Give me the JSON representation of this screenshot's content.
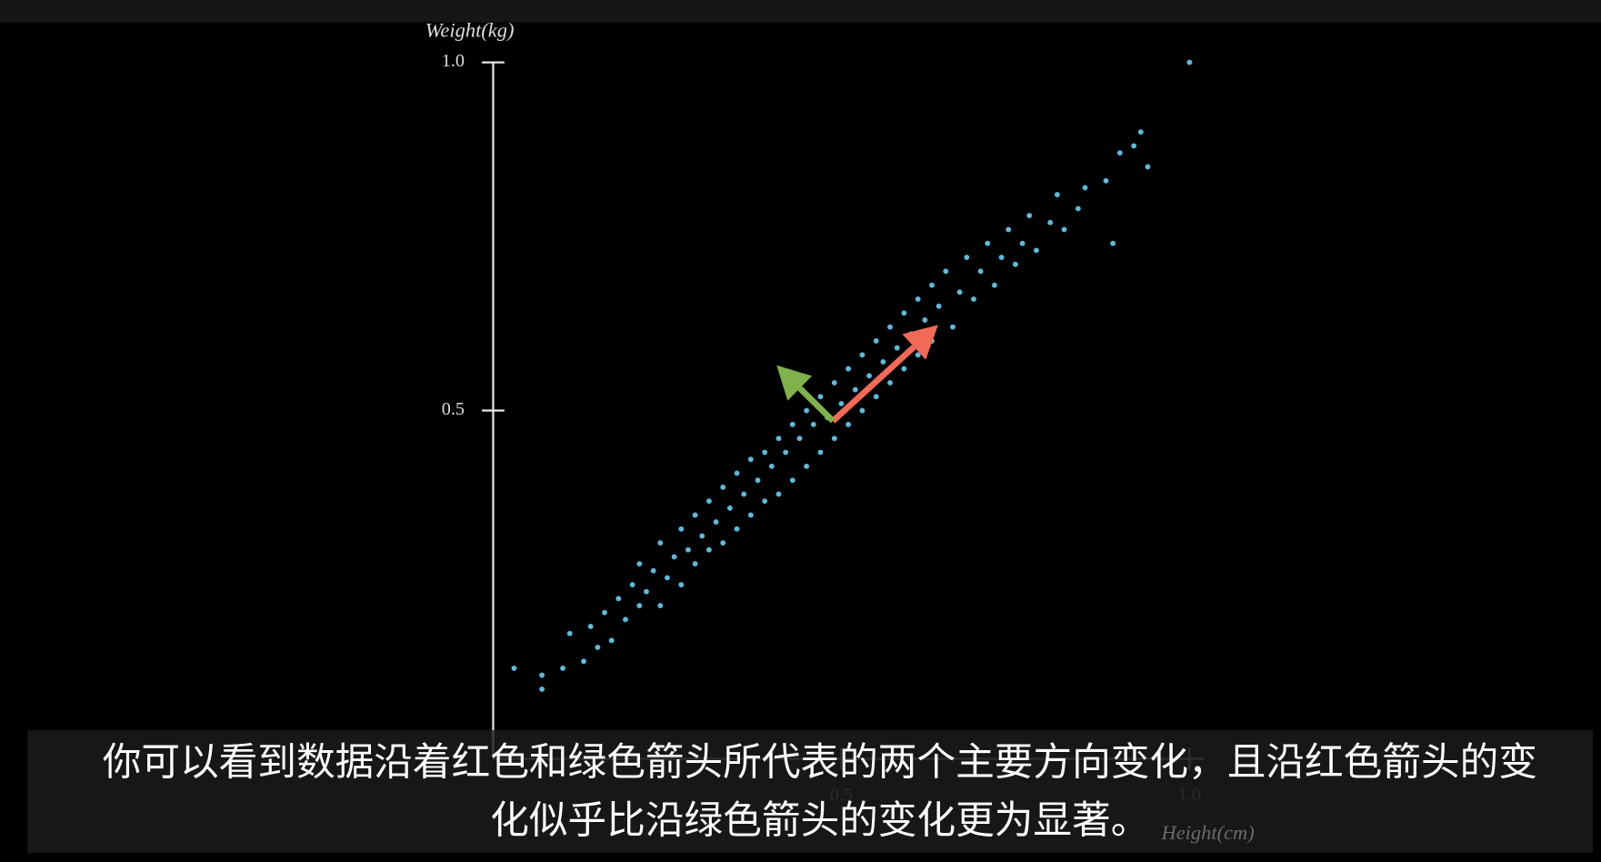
{
  "chart_data": {
    "type": "scatter",
    "x_label": "Height(cm)",
    "y_label": "Weight(kg)",
    "xlim": [
      0,
      1.0
    ],
    "ylim": [
      0,
      1.0
    ],
    "xticks": [
      0.5,
      {
        "value": 1.0,
        "label": "1.0"
      }
    ],
    "yticks": [
      0.5,
      {
        "value": 1.0,
        "label": "1.0"
      }
    ],
    "series": [
      {
        "color": "#5bbbdc",
        "x": [
          0.03,
          0.07,
          0.07,
          0.1,
          0.11,
          0.13,
          0.14,
          0.15,
          0.16,
          0.17,
          0.18,
          0.19,
          0.2,
          0.21,
          0.21,
          0.22,
          0.23,
          0.24,
          0.24,
          0.25,
          0.26,
          0.27,
          0.27,
          0.28,
          0.29,
          0.29,
          0.3,
          0.31,
          0.31,
          0.32,
          0.33,
          0.33,
          0.34,
          0.35,
          0.35,
          0.36,
          0.37,
          0.37,
          0.38,
          0.39,
          0.39,
          0.4,
          0.41,
          0.41,
          0.42,
          0.43,
          0.43,
          0.44,
          0.45,
          0.45,
          0.46,
          0.47,
          0.47,
          0.48,
          0.49,
          0.49,
          0.5,
          0.51,
          0.51,
          0.52,
          0.53,
          0.53,
          0.54,
          0.55,
          0.55,
          0.56,
          0.57,
          0.57,
          0.58,
          0.59,
          0.59,
          0.6,
          0.61,
          0.61,
          0.62,
          0.63,
          0.63,
          0.64,
          0.65,
          0.66,
          0.67,
          0.68,
          0.69,
          0.7,
          0.71,
          0.72,
          0.73,
          0.74,
          0.75,
          0.76,
          0.77,
          0.78,
          0.8,
          0.81,
          0.82,
          0.84,
          0.85,
          0.88,
          0.89,
          0.9,
          0.92,
          0.93,
          0.94,
          1.0
        ],
        "values": [
          0.13,
          0.1,
          0.12,
          0.13,
          0.18,
          0.14,
          0.19,
          0.16,
          0.21,
          0.17,
          0.23,
          0.2,
          0.25,
          0.22,
          0.28,
          0.24,
          0.27,
          0.22,
          0.31,
          0.26,
          0.29,
          0.33,
          0.25,
          0.3,
          0.35,
          0.28,
          0.32,
          0.37,
          0.3,
          0.34,
          0.39,
          0.31,
          0.36,
          0.41,
          0.33,
          0.38,
          0.43,
          0.35,
          0.4,
          0.44,
          0.37,
          0.42,
          0.46,
          0.38,
          0.44,
          0.48,
          0.4,
          0.46,
          0.5,
          0.42,
          0.48,
          0.52,
          0.44,
          0.49,
          0.54,
          0.46,
          0.51,
          0.56,
          0.48,
          0.53,
          0.58,
          0.5,
          0.55,
          0.6,
          0.52,
          0.57,
          0.62,
          0.54,
          0.59,
          0.64,
          0.56,
          0.61,
          0.66,
          0.58,
          0.63,
          0.68,
          0.6,
          0.65,
          0.7,
          0.62,
          0.67,
          0.72,
          0.66,
          0.7,
          0.74,
          0.68,
          0.72,
          0.76,
          0.71,
          0.74,
          0.78,
          0.73,
          0.77,
          0.81,
          0.76,
          0.79,
          0.82,
          0.83,
          0.74,
          0.87,
          0.88,
          0.9,
          0.85,
          1.0
        ]
      }
    ],
    "arrows": [
      {
        "color": "#f26a55",
        "from": [
          0.488,
          0.485
        ],
        "to": [
          0.639,
          0.623
        ]
      },
      {
        "color": "#7fb24a",
        "from": [
          0.488,
          0.485
        ],
        "to": [
          0.407,
          0.565
        ]
      }
    ]
  },
  "subtitle": {
    "lines": [
      "你可以看到数据沿着红色和绿色箭头所代表的两个主要方向变化，且沿红色箭头的变",
      "化似乎比沿绿色箭头的变化更为显著。"
    ]
  }
}
